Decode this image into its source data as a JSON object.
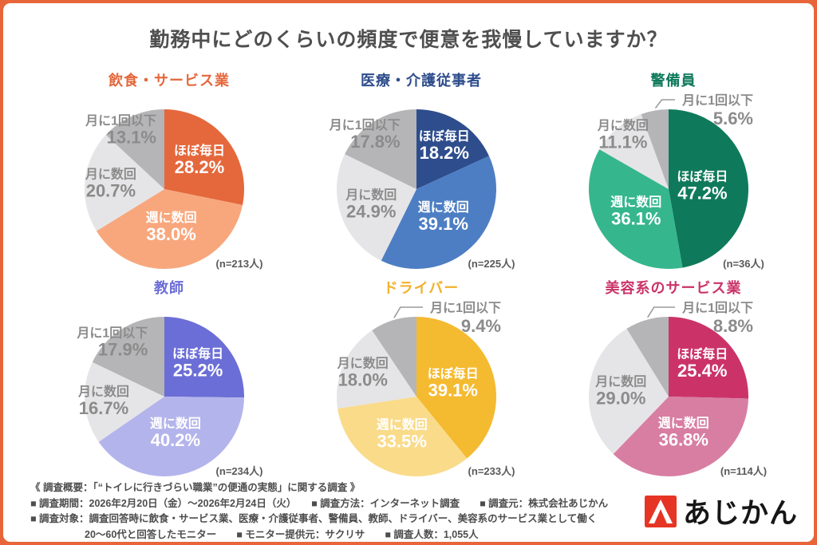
{
  "title": "勤務中にどのくらいの頻度で便意を我慢していますか？",
  "accent_border_color": "#E8653A",
  "label_text_color": "#8B8B8B",
  "n_text_color": "#595959",
  "chart_data": {
    "type": "pie",
    "categories": [
      "ほぼ毎日",
      "週に数回",
      "月に数回",
      "月に1回以下"
    ],
    "charts": [
      {
        "title": "飲食・サービス業",
        "title_color": "#E4683C",
        "values": [
          28.2,
          38.0,
          20.7,
          13.1
        ],
        "n_label": "(n=213人)",
        "palette": [
          "#E4683C",
          "#F8A77D",
          "#E5E5E7",
          "#B5B5B7"
        ]
      },
      {
        "title": "医療・介護従事者",
        "title_color": "#2E4D8C",
        "values": [
          18.2,
          39.1,
          24.9,
          17.8
        ],
        "n_label": "(n=225人)",
        "palette": [
          "#2E4D8C",
          "#4D7EC3",
          "#E5E5E7",
          "#B5B5B7"
        ]
      },
      {
        "title": "警備員",
        "title_color": "#0F7A5B",
        "values": [
          47.2,
          36.1,
          11.1,
          5.6
        ],
        "n_label": "(n=36人)",
        "palette": [
          "#0F7A5B",
          "#36B68D",
          "#E5E5E7",
          "#B5B5B7"
        ]
      },
      {
        "title": "教師",
        "title_color": "#6B6ED6",
        "values": [
          25.2,
          40.2,
          16.7,
          17.9
        ],
        "n_label": "(n=234人)",
        "palette": [
          "#6B6ED6",
          "#B4B4EC",
          "#E5E5E7",
          "#B5B5B7"
        ]
      },
      {
        "title": "ドライバー",
        "title_color": "#F2B12B",
        "values": [
          39.1,
          33.5,
          18.0,
          9.4
        ],
        "n_label": "(n=233人)",
        "palette": [
          "#F4BA30",
          "#F9DB8A",
          "#E5E5E7",
          "#B5B5B7"
        ]
      },
      {
        "title": "美容系のサービス業",
        "title_color": "#CB3368",
        "values": [
          25.4,
          36.8,
          29.0,
          8.8
        ],
        "n_label": "(n=114人)",
        "palette": [
          "#CB3368",
          "#D87EA2",
          "#E5E5E7",
          "#B5B5B7"
        ]
      }
    ]
  },
  "footer": {
    "lines": [
      "《 調査概要：「“トイレに行きづらい職業”の便通の実態」に関する調査 》",
      "■ 調査期間：2026年2月20日（金）～2026年2月24日（火）　　■ 調査方法：インターネット調査　　■ 調査元：株式会社あじかん",
      "■ 調査対象：調査回答時に飲食・サービス業、医療・介護従事者、警備員、教師、ドライバー、美容系のサービス業として働く",
      "20～60代と回答したモニター　　■ モニター提供元：サクリサ　　■ 調査人数：1,055人"
    ]
  },
  "logo": {
    "text": "あじかん",
    "icon_color": "#E63524"
  }
}
